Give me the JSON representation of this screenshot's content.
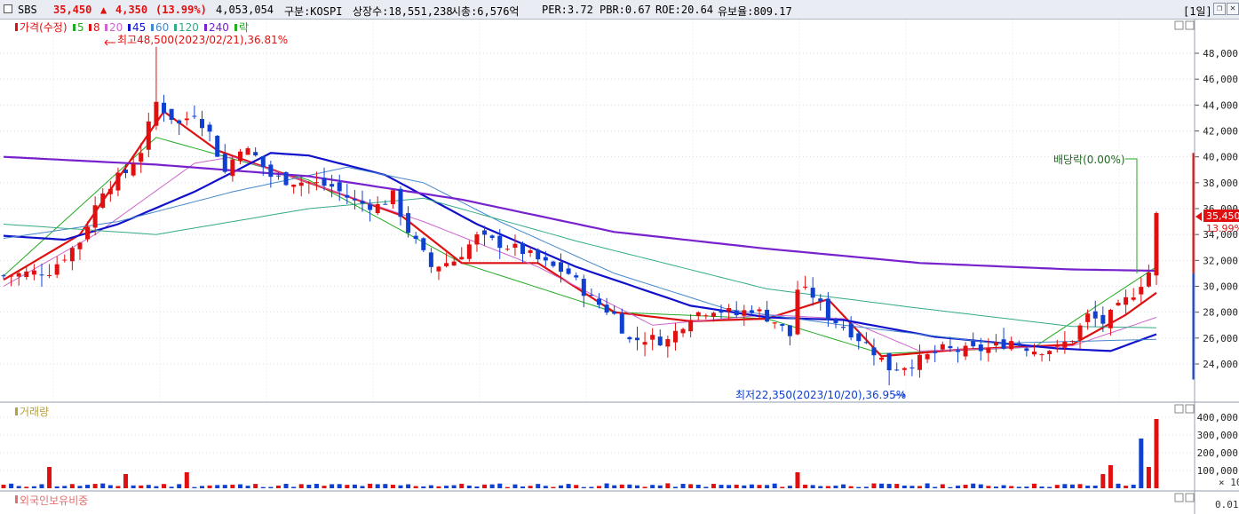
{
  "header": {
    "ticker": "SBS",
    "price": "35,450",
    "change_arrow": "▲",
    "change": "4,350",
    "change_pct": "(13.99%)",
    "volume": "4,053,054",
    "market": "구분:KOSPI",
    "shares": "상장수:18,551,238",
    "market_cap": "시총:6,576억",
    "per": "PER:3.72",
    "pbr": "PBR:0.67",
    "roe": "ROE:20.64",
    "reserve": "유보율:809.17",
    "period": "[1일]",
    "restore_icon": "restore-icon",
    "close_icon": "close-icon",
    "up_color": "#e01010",
    "down_color": "#1040d0"
  },
  "price_panel": {
    "legend_title": "가격(수정)",
    "legend": [
      {
        "label": "5",
        "color": "#22aa22"
      },
      {
        "label": "8",
        "color": "#dd1111"
      },
      {
        "label": "20",
        "color": "#cc66cc"
      },
      {
        "label": "45",
        "color": "#1111cc"
      },
      {
        "label": "60",
        "color": "#4488cc"
      },
      {
        "label": "120",
        "color": "#33aa88"
      },
      {
        "label": "240",
        "color": "#7722cc"
      },
      {
        "label": "락",
        "color": "#22aa22"
      }
    ],
    "high_label": "최고48,500(2023/02/21),36.81%",
    "low_label": "최저22,350(2023/10/20),36.95%",
    "dividend_label": "배당락(0.00%)",
    "current_price_tag": "35,450",
    "current_pct_tag": "13.99%"
  },
  "volume_panel": {
    "title": "거래량",
    "unit_label": "× 10"
  },
  "foreign_panel": {
    "title": "외국인보유비중",
    "value_label": "0.01"
  },
  "chart_data": [
    {
      "type": "candlestick",
      "title": "가격(수정)",
      "ylim": [
        22000,
        50000
      ],
      "y_ticks": [
        24000,
        26000,
        28000,
        30000,
        32000,
        34000,
        36000,
        38000,
        40000,
        42000,
        44000,
        46000,
        48000
      ],
      "y_tick_labels": [
        "24,000",
        "26,000",
        "28,000",
        "30,000",
        "32,000",
        "34,000",
        "36,000",
        "38,000",
        "40,000",
        "42,000",
        "44,000",
        "46,000",
        "48,000"
      ],
      "close_path": [
        [
          0,
          30800
        ],
        [
          6,
          31200
        ],
        [
          10,
          33500
        ],
        [
          13,
          37500
        ],
        [
          16,
          38800
        ],
        [
          18,
          40500
        ],
        [
          20,
          44200
        ],
        [
          23,
          42500
        ],
        [
          25,
          43500
        ],
        [
          27,
          41800
        ],
        [
          29,
          38800
        ],
        [
          31,
          40800
        ],
        [
          33,
          40000
        ],
        [
          35,
          38500
        ],
        [
          37,
          38200
        ],
        [
          40,
          38000
        ],
        [
          43,
          37700
        ],
        [
          46,
          36500
        ],
        [
          49,
          36200
        ],
        [
          51,
          37000
        ],
        [
          53,
          34300
        ],
        [
          56,
          31500
        ],
        [
          59,
          32000
        ],
        [
          62,
          33800
        ],
        [
          65,
          33300
        ],
        [
          68,
          32700
        ],
        [
          71,
          31700
        ],
        [
          74,
          31000
        ],
        [
          77,
          29000
        ],
        [
          80,
          27800
        ],
        [
          82,
          25800
        ],
        [
          84,
          26000
        ],
        [
          87,
          25800
        ],
        [
          90,
          27800
        ],
        [
          93,
          28300
        ],
        [
          96,
          27800
        ],
        [
          98,
          28300
        ],
        [
          101,
          27300
        ],
        [
          103,
          26200
        ],
        [
          104,
          29800
        ],
        [
          106,
          29300
        ],
        [
          108,
          27700
        ],
        [
          111,
          26500
        ],
        [
          114,
          25000
        ],
        [
          116,
          23700
        ],
        [
          118,
          23900
        ],
        [
          120,
          24300
        ],
        [
          123,
          25100
        ],
        [
          126,
          25000
        ],
        [
          129,
          25200
        ],
        [
          132,
          25800
        ],
        [
          135,
          25100
        ],
        [
          138,
          25200
        ],
        [
          140,
          26000
        ],
        [
          142,
          27700
        ],
        [
          144,
          27200
        ],
        [
          146,
          28300
        ],
        [
          148,
          29500
        ],
        [
          150,
          31100
        ],
        [
          151,
          35450
        ]
      ],
      "ma_lines": [
        {
          "name": "5",
          "color": "#22aa22",
          "points": [
            [
              0,
              30800
            ],
            [
              20,
              41500
            ],
            [
              40,
              38200
            ],
            [
              60,
              31800
            ],
            [
              80,
              28000
            ],
            [
              100,
              27500
            ],
            [
              115,
              24800
            ],
            [
              135,
              25300
            ],
            [
              151,
              31500
            ]
          ]
        },
        {
          "name": "8",
          "color": "#dd1111",
          "points": [
            [
              0,
              30500
            ],
            [
              10,
              34000
            ],
            [
              21,
              43500
            ],
            [
              28,
              40500
            ],
            [
              40,
              38000
            ],
            [
              52,
              35500
            ],
            [
              60,
              31800
            ],
            [
              70,
              31800
            ],
            [
              80,
              28000
            ],
            [
              90,
              27300
            ],
            [
              100,
              27500
            ],
            [
              108,
              29000
            ],
            [
              115,
              24600
            ],
            [
              125,
              25100
            ],
            [
              140,
              25500
            ],
            [
              147,
              27800
            ],
            [
              151,
              29500
            ]
          ]
        },
        {
          "name": "20",
          "color": "#cc66cc",
          "points": [
            [
              0,
              30000
            ],
            [
              12,
              34000
            ],
            [
              25,
              39500
            ],
            [
              30,
              40000
            ],
            [
              40,
              38000
            ],
            [
              55,
              35000
            ],
            [
              70,
              31500
            ],
            [
              85,
              27000
            ],
            [
              100,
              27800
            ],
            [
              110,
              27500
            ],
            [
              120,
              25000
            ],
            [
              140,
              25400
            ],
            [
              151,
              27600
            ]
          ]
        },
        {
          "name": "45",
          "color": "#1111cc",
          "points": [
            [
              0,
              33900
            ],
            [
              8,
              33600
            ],
            [
              15,
              34800
            ],
            [
              25,
              37300
            ],
            [
              35,
              40300
            ],
            [
              40,
              40100
            ],
            [
              50,
              38600
            ],
            [
              62,
              34800
            ],
            [
              75,
              31500
            ],
            [
              90,
              28500
            ],
            [
              100,
              27600
            ],
            [
              110,
              27400
            ],
            [
              122,
              26100
            ],
            [
              138,
              25200
            ],
            [
              145,
              25000
            ],
            [
              151,
              26300
            ]
          ]
        },
        {
          "name": "60",
          "color": "#4488cc",
          "points": [
            [
              0,
              33700
            ],
            [
              15,
              35000
            ],
            [
              30,
              37300
            ],
            [
              45,
              39200
            ],
            [
              55,
              38000
            ],
            [
              65,
              35000
            ],
            [
              80,
              31000
            ],
            [
              95,
              28200
            ],
            [
              110,
              27000
            ],
            [
              130,
              25600
            ],
            [
              151,
              25900
            ]
          ]
        },
        {
          "name": "120",
          "color": "#33aa88",
          "points": [
            [
              0,
              34800
            ],
            [
              20,
              34000
            ],
            [
              40,
              36000
            ],
            [
              55,
              36800
            ],
            [
              75,
              33500
            ],
            [
              100,
              29800
            ],
            [
              120,
              28300
            ],
            [
              140,
              26900
            ],
            [
              151,
              26800
            ]
          ]
        },
        {
          "name": "240",
          "color": "#7722cc",
          "points": [
            [
              0,
              40000
            ],
            [
              20,
              39400
            ],
            [
              40,
              38500
            ],
            [
              60,
              36700
            ],
            [
              80,
              34200
            ],
            [
              100,
              32900
            ],
            [
              120,
              31800
            ],
            [
              140,
              31300
            ],
            [
              151,
              31200
            ]
          ]
        }
      ],
      "high": {
        "value": 48500,
        "date": "2023/02/21"
      },
      "low": {
        "value": 22350,
        "date": "2023/10/20"
      },
      "last": {
        "value": 35450,
        "change": 4350,
        "change_pct": 13.99
      }
    },
    {
      "type": "bar",
      "title": "거래량",
      "ylim": [
        0,
        420000
      ],
      "y_ticks": [
        100000,
        200000,
        300000,
        400000
      ],
      "y_tick_labels": [
        "100,000",
        "200,000",
        "300,000",
        "400,000"
      ],
      "spikes": [
        [
          6,
          120000
        ],
        [
          16,
          80000
        ],
        [
          24,
          90000
        ],
        [
          104,
          90000
        ],
        [
          144,
          80000
        ],
        [
          145,
          130000
        ],
        [
          149,
          280000
        ],
        [
          150,
          120000
        ],
        [
          151,
          390000
        ]
      ]
    }
  ]
}
